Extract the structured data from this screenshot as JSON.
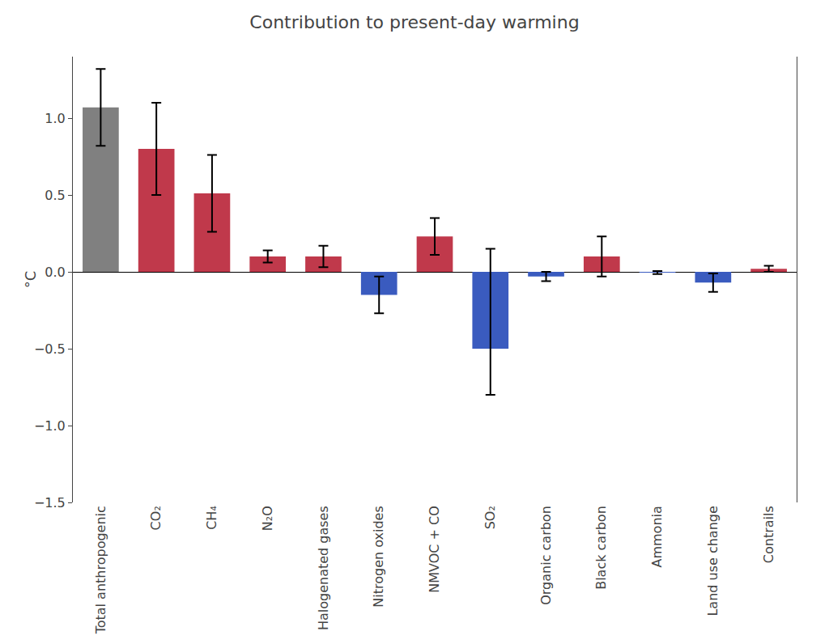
{
  "chart_data": {
    "type": "bar",
    "title": "Contribution to present-day warming",
    "ylabel": "°C",
    "categories": [
      "Total anthropogenic",
      "CO₂",
      "CH₄",
      "N₂O",
      "Halogenated gases",
      "Nitrogen oxides",
      "NMVOC + CO",
      "SO₂",
      "Organic carbon",
      "Black carbon",
      "Ammonia",
      "Land use change",
      "Contrails"
    ],
    "values": [
      1.07,
      0.8,
      0.51,
      0.1,
      0.1,
      -0.15,
      0.23,
      -0.5,
      -0.03,
      0.1,
      -0.005,
      -0.07,
      0.02
    ],
    "err_low": [
      0.25,
      0.3,
      0.25,
      0.04,
      0.07,
      0.12,
      0.12,
      0.3,
      0.03,
      0.13,
      0.01,
      0.06,
      0.02
    ],
    "err_high": [
      0.25,
      0.3,
      0.25,
      0.04,
      0.07,
      0.12,
      0.12,
      0.65,
      0.03,
      0.13,
      0.01,
      0.06,
      0.02
    ],
    "colors": [
      "#808080",
      "#c0394b",
      "#c0394b",
      "#c0394b",
      "#c0394b",
      "#3a5bbf",
      "#c0394b",
      "#3a5bbf",
      "#3a5bbf",
      "#c0394b",
      "#3a5bbf",
      "#3a5bbf",
      "#c0394b"
    ],
    "ylim": [
      -1.5,
      1.4
    ],
    "yticks": [
      {
        "value": -1.5,
        "label": "−1.5"
      },
      {
        "value": -1.0,
        "label": "−1.0"
      },
      {
        "value": -0.5,
        "label": "−0.5"
      },
      {
        "value": 0.0,
        "label": "0.0"
      },
      {
        "value": 0.5,
        "label": "0.5"
      },
      {
        "value": 1.0,
        "label": "1.0"
      }
    ],
    "grid": false
  }
}
